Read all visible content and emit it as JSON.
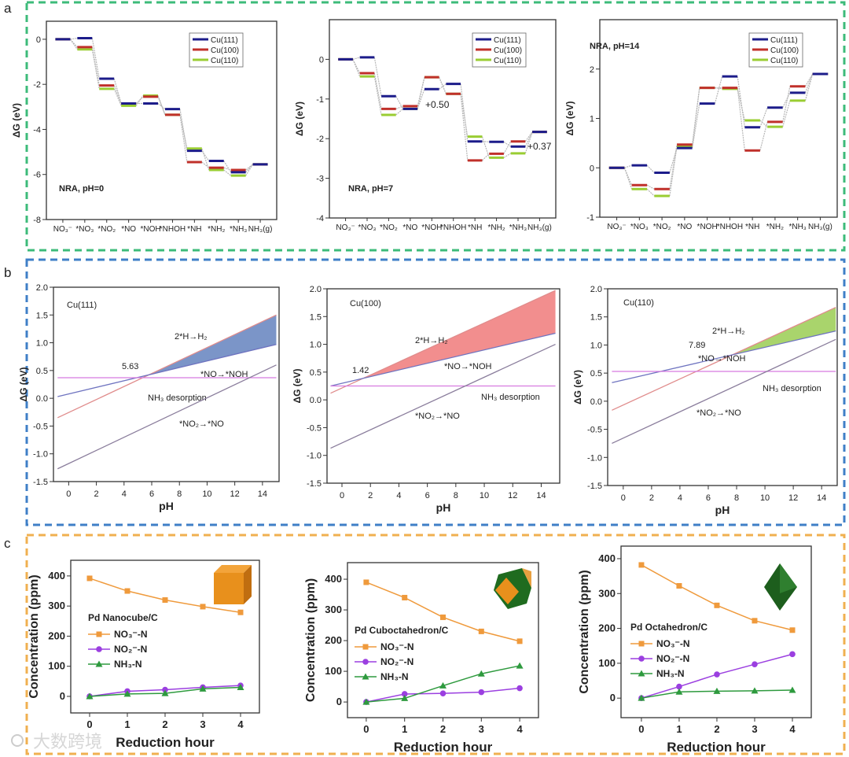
{
  "panel_labels": [
    "a",
    "b",
    "c"
  ],
  "watermark": "大数跨境",
  "chart_data": [
    {
      "type": "line",
      "style": "energy-levels",
      "title": "NRA, pH=0",
      "xlabel": "",
      "ylabel": "ΔG (eV)",
      "categories": [
        "NO₃⁻",
        "*NO₃",
        "*NO₂",
        "*NO",
        "*NOH",
        "*NHOH",
        "*NH",
        "*NH₂",
        "*NH₃",
        "NH₃(g)"
      ],
      "ylim": [
        -8,
        0.8
      ],
      "yticks": [
        "-8",
        "-6",
        "-4",
        "-2",
        "0"
      ],
      "legend": "top-right",
      "annotations": [],
      "series": [
        {
          "name": "Cu(111)",
          "color": "#1c1c8a",
          "values": [
            0,
            0.05,
            -1.75,
            -2.85,
            -2.85,
            -3.1,
            -4.95,
            -5.4,
            -5.9,
            -5.55
          ]
        },
        {
          "name": "Cu(100)",
          "color": "#c0302a",
          "values": [
            0,
            -0.35,
            -2.05,
            -2.85,
            -2.55,
            -3.35,
            -5.45,
            -5.7,
            -5.8,
            -5.55
          ]
        },
        {
          "name": "Cu(110)",
          "color": "#9acd32",
          "values": [
            0,
            -0.45,
            -2.2,
            -2.95,
            -2.5,
            -3.35,
            -4.85,
            -5.8,
            -6.05,
            -5.55
          ]
        }
      ]
    },
    {
      "type": "line",
      "style": "energy-levels",
      "title": "NRA, pH=7",
      "xlabel": "",
      "ylabel": "ΔG (eV)",
      "categories": [
        "NO₃⁻",
        "*NO₃",
        "*NO₂",
        "*NO",
        "*NOH",
        "*NHOH",
        "*NH",
        "*NH₂",
        "*NH₃",
        "NH₃(g)"
      ],
      "ylim": [
        -4,
        1
      ],
      "yticks": [
        "-4",
        "-3",
        "-2",
        "-1",
        "0"
      ],
      "legend": "top-right",
      "annotations": [
        "+0.50",
        "+0.37"
      ],
      "series": [
        {
          "name": "Cu(111)",
          "color": "#1c1c8a",
          "values": [
            0,
            0.05,
            -0.93,
            -1.25,
            -0.75,
            -0.62,
            -2.07,
            -2.08,
            -2.2,
            -1.83
          ]
        },
        {
          "name": "Cu(100)",
          "color": "#c0302a",
          "values": [
            0,
            -0.35,
            -1.25,
            -1.18,
            -0.45,
            -0.87,
            -2.55,
            -2.38,
            -2.07,
            -1.83
          ]
        },
        {
          "name": "Cu(110)",
          "color": "#9acd32",
          "values": [
            0,
            -0.43,
            -1.4,
            -1.25,
            -0.45,
            -0.87,
            -1.95,
            -2.48,
            -2.37,
            -1.83
          ]
        }
      ]
    },
    {
      "type": "line",
      "style": "energy-levels",
      "title": "NRA, pH=14",
      "xlabel": "",
      "ylabel": "ΔG (eV)",
      "categories": [
        "NO₃⁻",
        "*NO₃",
        "*NO₂",
        "*NO",
        "*NOH",
        "*NHOH",
        "*NH",
        "*NH₂",
        "*NH₃",
        "NH₃(g)"
      ],
      "ylim": [
        -1,
        3
      ],
      "yticks": [
        "-1",
        "0",
        "1",
        "2"
      ],
      "legend": "top-right",
      "annotations": [],
      "series": [
        {
          "name": "Cu(111)",
          "color": "#1c1c8a",
          "values": [
            0,
            0.05,
            -0.1,
            0.4,
            1.3,
            1.85,
            0.82,
            1.22,
            1.52,
            1.9
          ]
        },
        {
          "name": "Cu(100)",
          "color": "#c0302a",
          "values": [
            0,
            -0.35,
            -0.43,
            0.47,
            1.62,
            1.62,
            0.35,
            0.93,
            1.65,
            1.9
          ]
        },
        {
          "name": "Cu(110)",
          "color": "#9acd32",
          "values": [
            0,
            -0.43,
            -0.57,
            0.43,
            1.62,
            1.6,
            0.96,
            0.83,
            1.36,
            1.9
          ]
        }
      ]
    },
    {
      "type": "line",
      "title": "Cu(111)",
      "xlabel": "pH",
      "ylabel": "ΔG (eV)",
      "xlim": [
        -1.1,
        15.2
      ],
      "ylim": [
        -1.5,
        2.0
      ],
      "xticks": [
        "0",
        "2",
        "4",
        "6",
        "8",
        "10",
        "12",
        "14"
      ],
      "yticks": [
        "-1.5",
        "-1.0",
        "-0.5",
        "0.0",
        "0.5",
        "1.0",
        "1.5",
        "2.0"
      ],
      "fill_color": "#7b95c8",
      "annotations": [
        "5.63"
      ],
      "series": [
        {
          "name": "2*H→H₂",
          "color": "#e08c8c",
          "x": [
            -0.8,
            15
          ],
          "y": [
            -0.35,
            1.5
          ]
        },
        {
          "name": "*NO→*NOH",
          "color": "#6f74c0",
          "x": [
            -0.8,
            15
          ],
          "y": [
            0.03,
            0.97
          ]
        },
        {
          "name": "NH₃ desorption",
          "color": "#d77be0",
          "x": [
            -0.8,
            15
          ],
          "y": [
            0.37,
            0.37
          ]
        },
        {
          "name": "*NO₂→*NO",
          "color": "#8a7d9c",
          "x": [
            -0.8,
            15
          ],
          "y": [
            -1.27,
            0.6
          ]
        }
      ]
    },
    {
      "type": "line",
      "title": "Cu(100)",
      "xlabel": "pH",
      "ylabel": "ΔG (eV)",
      "xlim": [
        -1.05,
        15.3
      ],
      "ylim": [
        -1.5,
        2.0
      ],
      "xticks": [
        "0",
        "2",
        "4",
        "6",
        "8",
        "10",
        "12",
        "14"
      ],
      "yticks": [
        "-1.5",
        "-1.0",
        "-0.5",
        "0.0",
        "0.5",
        "1.0",
        "1.5",
        "2.0"
      ],
      "fill_color": "#f28e8e",
      "annotations": [
        "1.42"
      ],
      "series": [
        {
          "name": "2*H→H₂",
          "color": "#e08c8c",
          "x": [
            -0.8,
            15
          ],
          "y": [
            0.12,
            1.97
          ]
        },
        {
          "name": "*NO→*NOH",
          "color": "#6f74c0",
          "x": [
            -0.8,
            15
          ],
          "y": [
            0.25,
            1.2
          ]
        },
        {
          "name": "NH₃ desorption",
          "color": "#d77be0",
          "x": [
            -0.8,
            15
          ],
          "y": [
            0.25,
            0.25
          ]
        },
        {
          "name": "*NO₂→*NO",
          "color": "#8a7d9c",
          "x": [
            -0.8,
            15
          ],
          "y": [
            -0.87,
            1.0
          ]
        }
      ]
    },
    {
      "type": "line",
      "title": "Cu(110)",
      "xlabel": "pH",
      "ylabel": "ΔG (eV)",
      "xlim": [
        -1.1,
        15.1
      ],
      "ylim": [
        -1.5,
        2.0
      ],
      "xticks": [
        "0",
        "2",
        "4",
        "6",
        "8",
        "10",
        "12",
        "14"
      ],
      "yticks": [
        "-1.5",
        "-1.0",
        "-0.5",
        "0.0",
        "0.5",
        "1.0",
        "1.5",
        "2.0"
      ],
      "fill_color": "#a9d46c",
      "annotations": [
        "7.89"
      ],
      "series": [
        {
          "name": "2*H→H₂",
          "color": "#e08c8c",
          "x": [
            -0.8,
            15
          ],
          "y": [
            -0.16,
            1.67
          ]
        },
        {
          "name": "*NO→*NOH",
          "color": "#6f74c0",
          "x": [
            -0.8,
            15
          ],
          "y": [
            0.33,
            1.25
          ]
        },
        {
          "name": "NH₃ desorption",
          "color": "#d77be0",
          "x": [
            -0.8,
            15
          ],
          "y": [
            0.53,
            0.53
          ]
        },
        {
          "name": "*NO₂→*NO",
          "color": "#8a7d9c",
          "x": [
            -0.8,
            15
          ],
          "y": [
            -0.75,
            1.1
          ]
        }
      ]
    },
    {
      "type": "line",
      "title": "Pd Nanocube/C",
      "xlabel": "Reduction hour",
      "ylabel": "Concentration (ppm)",
      "x": [
        0,
        1,
        2,
        3,
        4
      ],
      "xlim": [
        -0.5,
        4.5
      ],
      "ylim": [
        -55,
        452
      ],
      "xticks": [
        "0",
        "1",
        "2",
        "3",
        "4"
      ],
      "yticks": [
        "0",
        "100",
        "200",
        "300",
        "400"
      ],
      "shape": "cube",
      "series": [
        {
          "name": "NO₃⁻-N",
          "color": "#ef9a3c",
          "marker": "square",
          "values": [
            392,
            350,
            320,
            298,
            279
          ]
        },
        {
          "name": "NO₂⁻-N",
          "color": "#9b3fe0",
          "marker": "circle",
          "values": [
            0,
            17,
            22,
            30,
            36
          ]
        },
        {
          "name": "NH₃-N",
          "color": "#2e9a3e",
          "marker": "triangle",
          "values": [
            0,
            8,
            10,
            25,
            30
          ]
        }
      ]
    },
    {
      "type": "line",
      "title": "Pd Cuboctahedron/C",
      "xlabel": "Reduction hour",
      "ylabel": "Concentration (ppm)",
      "x": [
        0,
        1,
        2,
        3,
        4
      ],
      "xlim": [
        -0.49,
        4.49
      ],
      "ylim": [
        -51,
        454
      ],
      "xticks": [
        "0",
        "1",
        "2",
        "3",
        "4"
      ],
      "yticks": [
        "0",
        "100",
        "200",
        "300",
        "400"
      ],
      "shape": "cuboctahedron",
      "series": [
        {
          "name": "NO₃⁻-N",
          "color": "#ef9a3c",
          "marker": "square",
          "values": [
            390,
            340,
            276,
            230,
            198
          ]
        },
        {
          "name": "NO₂⁻-N",
          "color": "#9b3fe0",
          "marker": "circle",
          "values": [
            0,
            26,
            28,
            32,
            45
          ]
        },
        {
          "name": "NH₃-N",
          "color": "#2e9a3e",
          "marker": "triangle",
          "values": [
            0,
            12,
            53,
            92,
            118
          ]
        }
      ]
    },
    {
      "type": "line",
      "title": "Pd Octahedron/C",
      "xlabel": "Reduction hour",
      "ylabel": "Concentration (ppm)",
      "x": [
        0,
        1,
        2,
        3,
        4
      ],
      "xlim": [
        -0.54,
        4.5
      ],
      "ylim": [
        -56,
        436
      ],
      "xticks": [
        "0",
        "1",
        "2",
        "3",
        "4"
      ],
      "yticks": [
        "0",
        "100",
        "200",
        "300",
        "400"
      ],
      "shape": "octahedron",
      "series": [
        {
          "name": "NO₃⁻-N",
          "color": "#ef9a3c",
          "marker": "square",
          "values": [
            382,
            322,
            266,
            222,
            195
          ]
        },
        {
          "name": "NO₂⁻-N",
          "color": "#9b3fe0",
          "marker": "circle",
          "values": [
            0,
            33,
            68,
            97,
            126
          ]
        },
        {
          "name": "NH₃-N",
          "color": "#2e9a3e",
          "marker": "triangle",
          "values": [
            0,
            18,
            20,
            21,
            23
          ]
        }
      ]
    }
  ]
}
